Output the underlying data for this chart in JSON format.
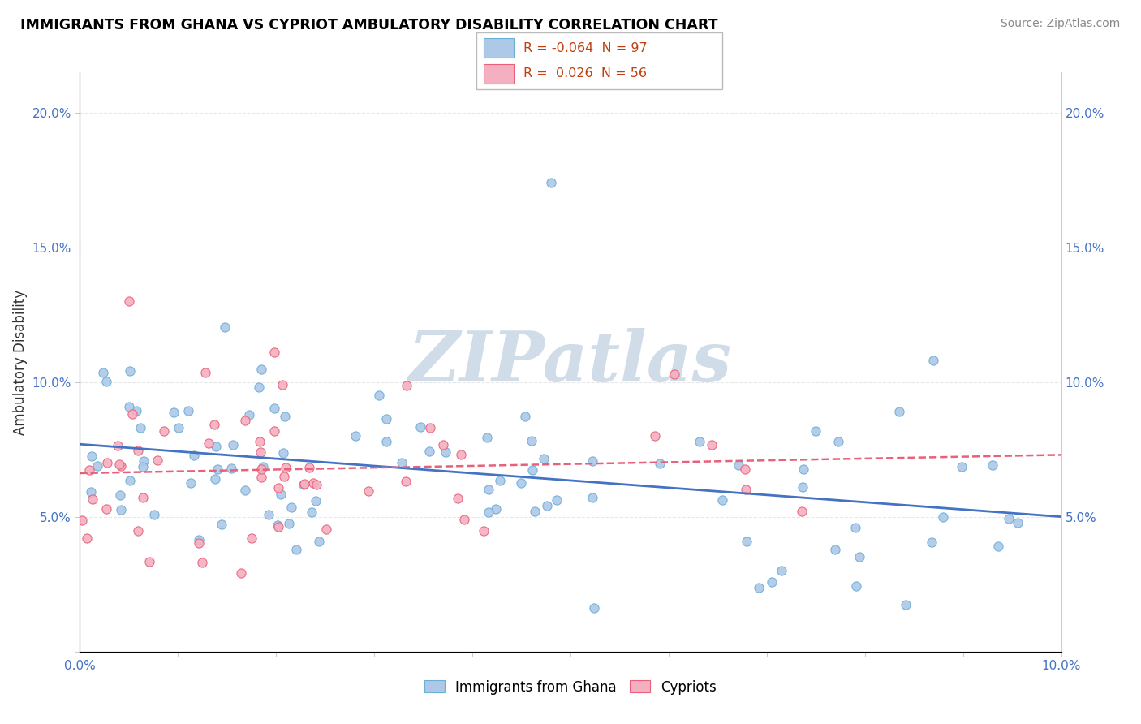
{
  "title": "IMMIGRANTS FROM GHANA VS CYPRIOT AMBULATORY DISABILITY CORRELATION CHART",
  "source": "Source: ZipAtlas.com",
  "ylabel": "Ambulatory Disability",
  "legend_labels": [
    "Immigrants from Ghana",
    "Cypriots"
  ],
  "r_values": [
    -0.064,
    0.026
  ],
  "n_values": [
    97,
    56
  ],
  "xlim": [
    0.0,
    0.1
  ],
  "ylim": [
    0.0,
    0.215
  ],
  "yticks": [
    0.0,
    0.05,
    0.1,
    0.15,
    0.2
  ],
  "ytick_labels_left": [
    "",
    "5.0%",
    "10.0%",
    "15.0%",
    "20.0%"
  ],
  "ytick_labels_right": [
    "",
    "5.0%",
    "10.0%",
    "15.0%",
    "20.0%"
  ],
  "xtick_labels": [
    "0.0%",
    "",
    "",
    "",
    "",
    "",
    "",
    "",
    "",
    "",
    "10.0%"
  ],
  "color_ghana": "#aec8e8",
  "color_cyprus": "#f4afc0",
  "edge_ghana": "#6aafd6",
  "edge_cyprus": "#e8607a",
  "trend_ghana_color": "#4472c4",
  "trend_cyprus_color": "#e8607a",
  "watermark_color": "#d0dce8",
  "grid_color": "#e8e8e8",
  "tick_color": "#4472c4",
  "title_color": "#000000",
  "source_color": "#888888",
  "ylabel_color": "#333333"
}
